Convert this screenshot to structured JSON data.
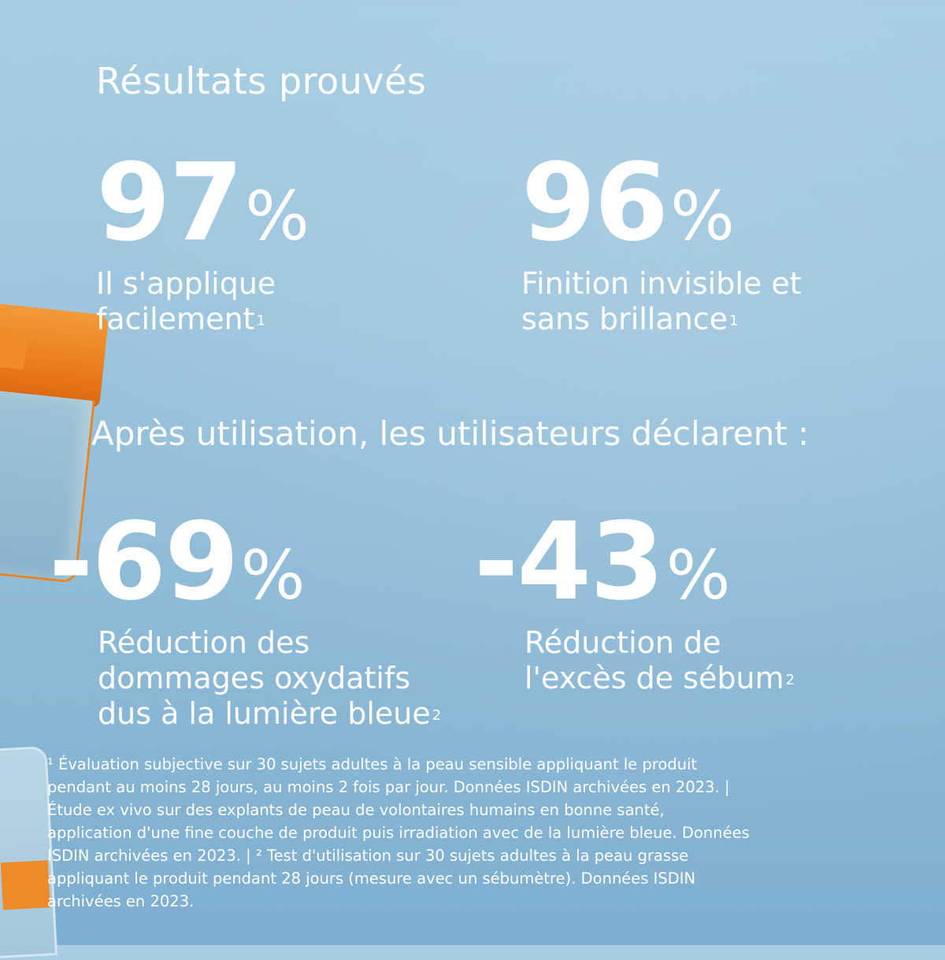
{
  "title": "Résultats prouvés",
  "stats_top": [
    {
      "value": "97",
      "unit": "%",
      "desc_lines": [
        "Il s'applique",
        "facilement"
      ],
      "note": "1"
    },
    {
      "value": "96",
      "unit": "%",
      "desc_lines": [
        "Finition invisible et",
        "sans brillance"
      ],
      "note": "1"
    }
  ],
  "subheading": "Après utilisation, les utilisateurs déclarent :",
  "stats_bottom": [
    {
      "value": "-69",
      "unit": "%",
      "desc_lines": [
        "Réduction des",
        "dommages oxydatifs",
        "dus à la lumière bleue"
      ],
      "note": "2"
    },
    {
      "value": "-43",
      "unit": "%",
      "desc_lines": [
        "Réduction de",
        "l'excès de sébum"
      ],
      "note": "2"
    }
  ],
  "footnote_lines": [
    "¹ Évaluation subjective sur 30 sujets adultes à la peau sensible appliquant le produit",
    "pendant au moins 28 jours, au moins 2 fois par jour. Données ISDIN archivées en 2023. |",
    "Étude ex vivo sur des explants de peau de volontaires humains en bonne santé,",
    "application d'une fine couche de produit puis irradiation avec de la lumière bleue. Données",
    "ISDIN archivées en 2023. | ² Test d'utilisation sur 30 sujets adultes à la peau grasse",
    "appliquant le produit pendant 28 jours (mesure avec un sébumètre). Données ISDIN",
    "archivées en 2023."
  ],
  "colors": {
    "background": "#9cc5dd",
    "accent": "#ea7d1c",
    "text": "#ffffff"
  }
}
